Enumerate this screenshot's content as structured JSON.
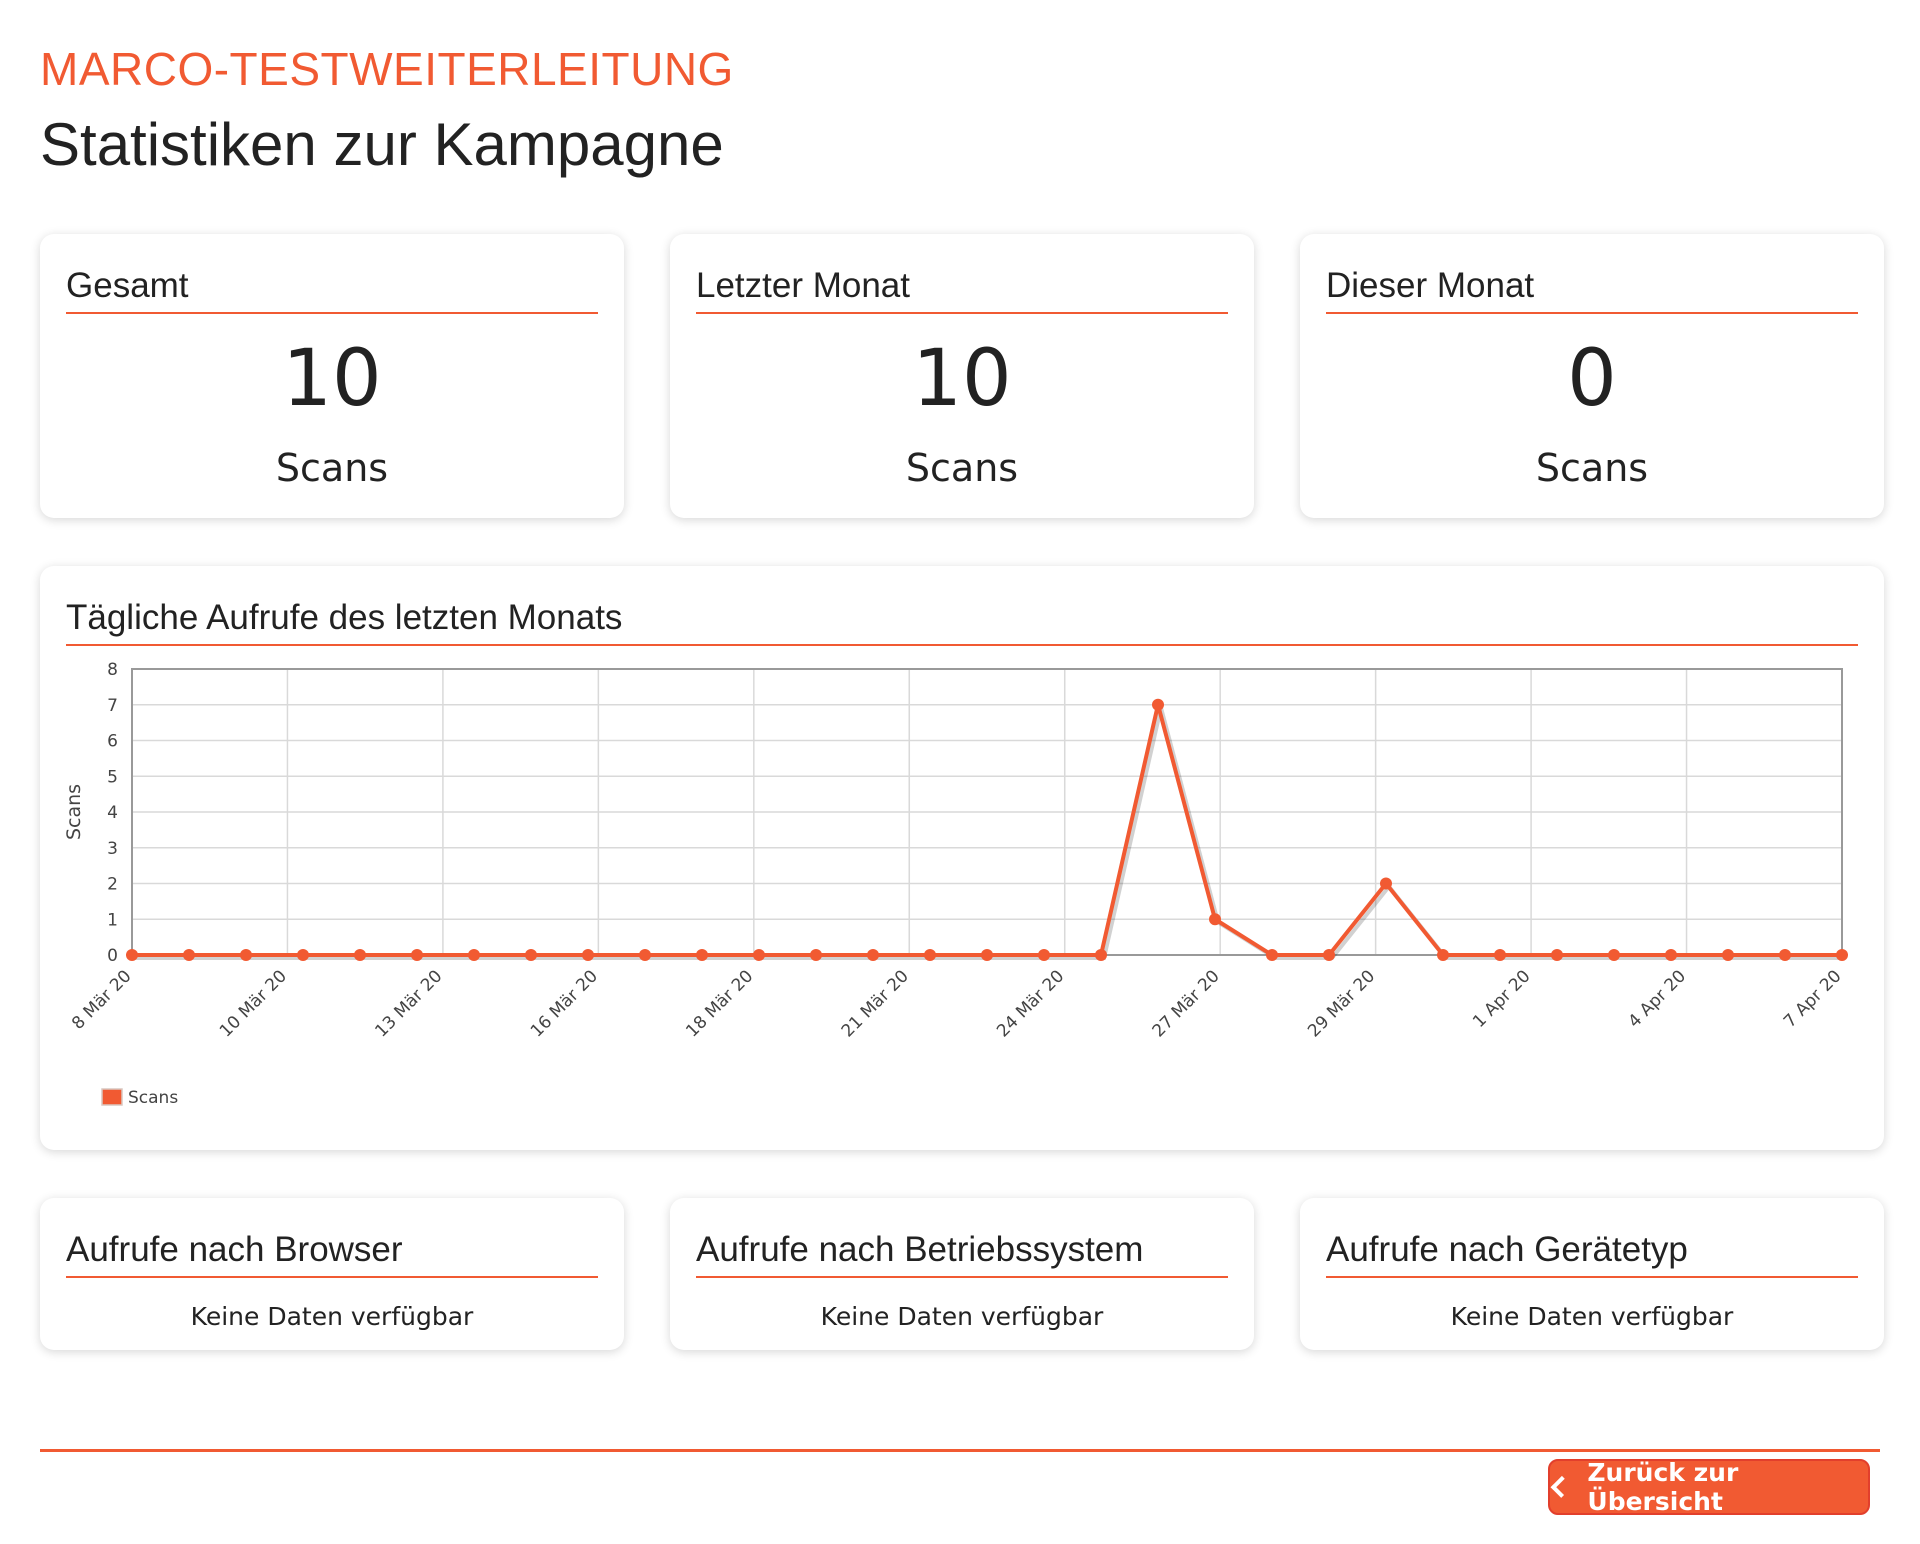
{
  "header": {
    "campaign_name": "MARCO-TESTWEITERLEITUNG",
    "title": "Statistiken zur Kampagne"
  },
  "stats": [
    {
      "label": "Gesamt",
      "value": "10",
      "unit": "Scans"
    },
    {
      "label": "Letzter Monat",
      "value": "10",
      "unit": "Scans"
    },
    {
      "label": "Dieser Monat",
      "value": "0",
      "unit": "Scans"
    }
  ],
  "chart_panel": {
    "title": "Tägliche Aufrufe des letzten Monats"
  },
  "breakdowns": [
    {
      "label": "Aufrufe nach Browser",
      "message": "Keine Daten verfügbar"
    },
    {
      "label": "Aufrufe nach Betriebssystem",
      "message": "Keine Daten verfügbar"
    },
    {
      "label": "Aufrufe nach Gerätetyp",
      "message": "Keine Daten verfügbar"
    }
  ],
  "footer": {
    "back_label": "Zurück zur Übersicht"
  },
  "colors": {
    "accent": "#f15a32",
    "grid": "#d9d9d9",
    "axis": "#999999"
  },
  "chart_data": {
    "type": "line",
    "title": "",
    "xlabel": "",
    "ylabel": "Scans",
    "ylim": [
      0,
      8
    ],
    "y_ticks": [
      0,
      1,
      2,
      3,
      4,
      5,
      6,
      7,
      8
    ],
    "x_tick_labels": [
      "8 Mär 20",
      "10 Mär 20",
      "13 Mär 20",
      "16 Mär 20",
      "18 Mär 20",
      "21 Mär 20",
      "24 Mär 20",
      "27 Mär 20",
      "29 Mär 20",
      "1 Apr 20",
      "4 Apr 20",
      "7 Apr 20"
    ],
    "legend": "bottom-left",
    "grid": true,
    "series": [
      {
        "name": "Scans",
        "color": "#f15a32",
        "values": [
          0,
          0,
          0,
          0,
          0,
          0,
          0,
          0,
          0,
          0,
          0,
          0,
          0,
          0,
          0,
          0,
          0,
          0,
          7,
          1,
          0,
          0,
          2,
          0,
          0,
          0,
          0,
          0,
          0,
          0,
          0
        ]
      }
    ]
  }
}
